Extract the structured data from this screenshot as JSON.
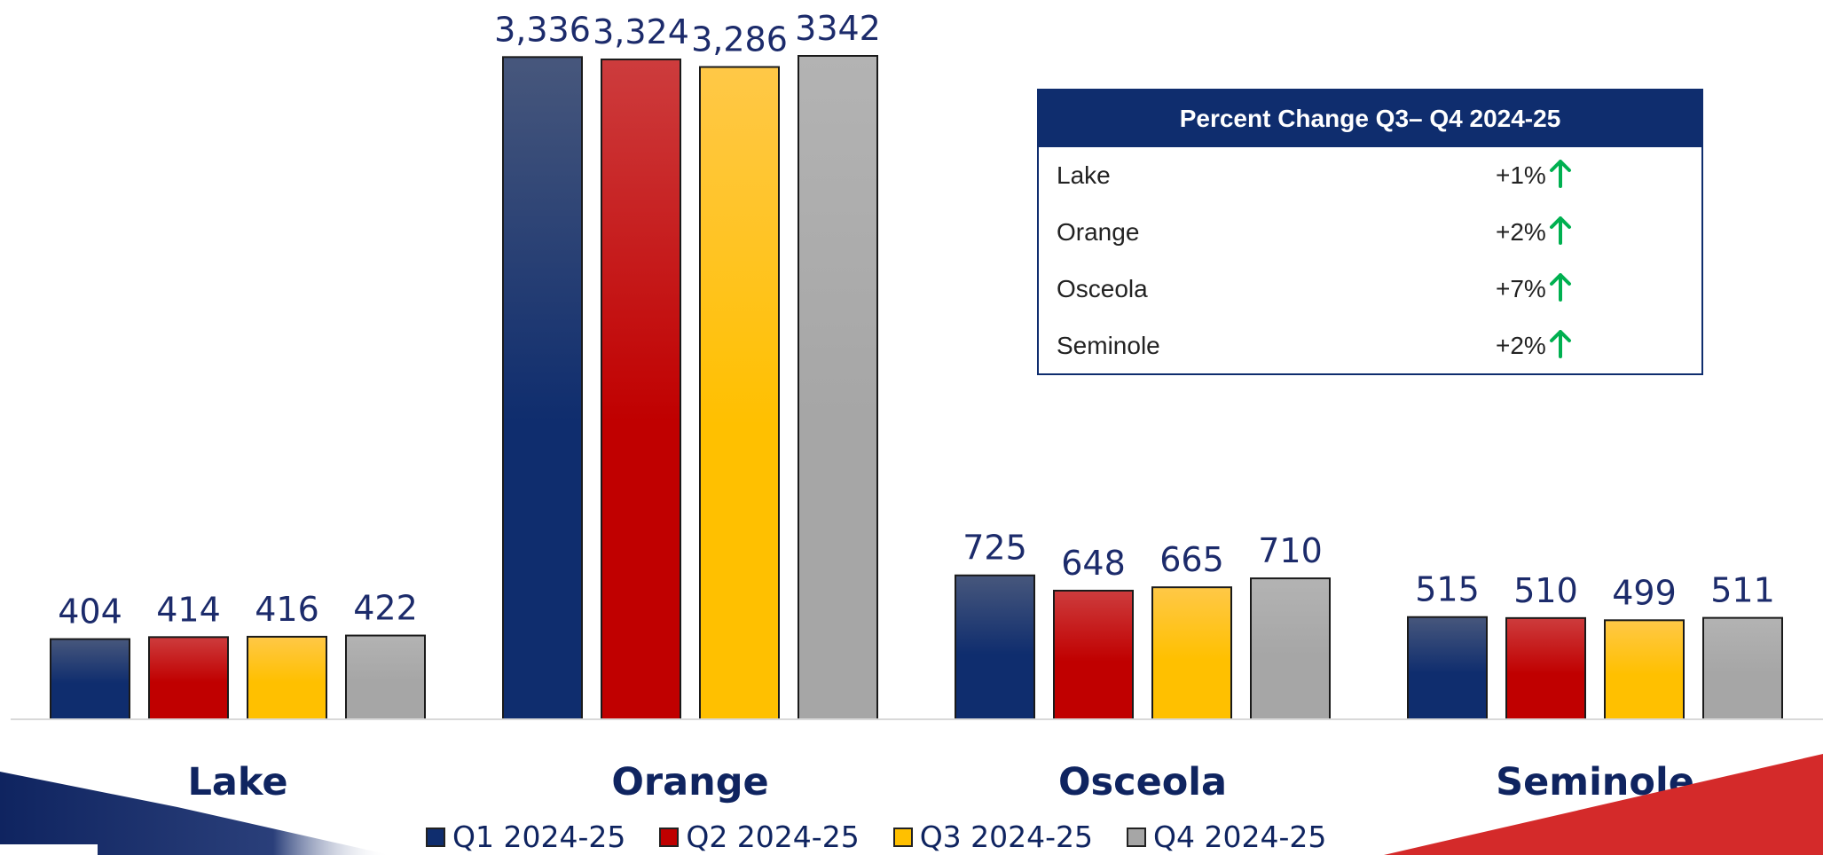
{
  "chart_data": {
    "type": "bar",
    "categories": [
      "Lake",
      "Orange",
      "Osceola",
      "Seminole"
    ],
    "series": [
      {
        "name": "Q1 2024-25",
        "values": [
          404,
          3336,
          725,
          515
        ],
        "labels": [
          "404",
          "3,336",
          "725",
          "515"
        ],
        "color": "#0f2d6e",
        "color_light": "#47577c"
      },
      {
        "name": "Q2 2024-25",
        "values": [
          414,
          3324,
          648,
          510
        ],
        "labels": [
          "414",
          "3,324",
          "648",
          "510"
        ],
        "color": "#c00000",
        "color_light": "#cd3c3d"
      },
      {
        "name": "Q3 2024-25",
        "values": [
          416,
          3286,
          665,
          499
        ],
        "labels": [
          "416",
          "3,286",
          "665",
          "499"
        ],
        "color": "#ffc000",
        "color_light": "#ffc847"
      },
      {
        "name": "Q4 2024-25",
        "values": [
          422,
          3342,
          710,
          511
        ],
        "labels": [
          "422",
          "3342",
          "710",
          "511"
        ],
        "color": "#a6a6a6",
        "color_light": "#b3b3b3"
      }
    ],
    "legend_position": "bottom",
    "grid": false
  },
  "table": {
    "title": "Percent Change Q3– Q4 2024-25",
    "rows": [
      {
        "name": "Lake",
        "change": "+1%"
      },
      {
        "name": "Orange",
        "change": "+2%"
      },
      {
        "name": "Osceola",
        "change": "+7%"
      },
      {
        "name": "Seminole",
        "change": "+2%"
      }
    ],
    "arrow_icon": "up-arrow-icon",
    "arrow_color": "#00b050"
  },
  "colors": {
    "navy": "#0f2d6e",
    "red": "#d42a2a"
  }
}
